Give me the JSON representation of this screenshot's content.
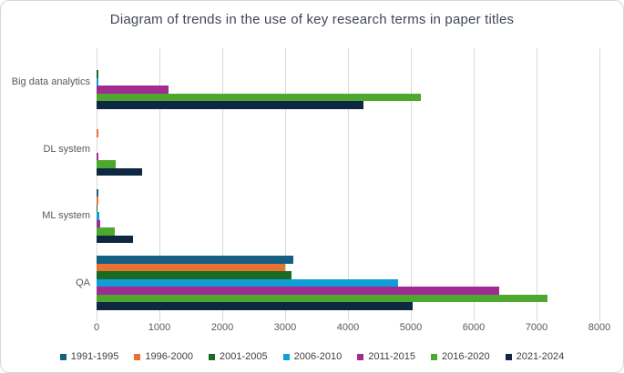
{
  "chart_data": {
    "type": "bar",
    "orientation": "horizontal",
    "title": "Diagram of trends in the use of key research terms in paper titles",
    "categories": [
      "Big data analytics",
      "DL system",
      "ML system",
      "QA"
    ],
    "series": [
      {
        "name": "1991-1995",
        "color": "#156082",
        "values": [
          0,
          0,
          35,
          3130
        ]
      },
      {
        "name": "1996-2000",
        "color": "#E97132",
        "values": [
          0,
          25,
          30,
          3000
        ]
      },
      {
        "name": "2001-2005",
        "color": "#196B24",
        "values": [
          25,
          0,
          20,
          3100
        ]
      },
      {
        "name": "2006-2010",
        "color": "#0F9ED5",
        "values": [
          35,
          0,
          45,
          4800
        ]
      },
      {
        "name": "2011-2015",
        "color": "#A02B93",
        "values": [
          1150,
          25,
          60,
          6400
        ]
      },
      {
        "name": "2016-2020",
        "color": "#4EA72E",
        "values": [
          5160,
          310,
          290,
          7180
        ]
      },
      {
        "name": "2021-2024",
        "color": "#0E2841",
        "values": [
          4250,
          730,
          580,
          5030
        ]
      }
    ],
    "x_axis": {
      "min": 0,
      "max": 8000,
      "step": 1000,
      "tick_labels": [
        "0",
        "1000",
        "2000",
        "3000",
        "4000",
        "5000",
        "6000",
        "7000",
        "8000"
      ]
    },
    "legend_position": "bottom",
    "grid": true,
    "colors": {
      "title_text": "#404756",
      "axis_text": "#595959",
      "gridline": "#D9D9D9",
      "frame_border": "#D8D8D8",
      "background": "#FFFFFF"
    }
  }
}
